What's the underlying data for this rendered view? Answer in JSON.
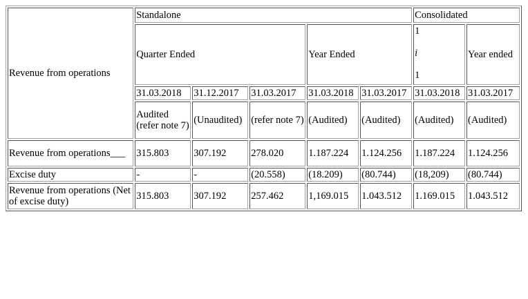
{
  "table": {
    "row_header": "Revenue from operations",
    "groups": {
      "standalone": "Standalone",
      "consolidated": "Consolidated"
    },
    "periods": {
      "quarter_ended": "Quarter Ended",
      "year_ended": "Year Ended",
      "consolidated_note": [
        "1",
        "i",
        "1"
      ],
      "consolidated_year_ended": "Year ended"
    },
    "dates": [
      "31.03.2018",
      "31.12.2017",
      "31.03.2017",
      "31.03.2018",
      "31.03.2017",
      "31.03.2018",
      "31.03.2017"
    ],
    "audit_status": [
      "Audited (refer note 7)",
      "(Unaudited)",
      "(refer note 7)",
      "(Audited)",
      "(Audited)",
      "(Audited)",
      "(Audited)"
    ],
    "rows": [
      {
        "label": "Revenue from operations___",
        "values": [
          "315.803",
          "307.192",
          "278.020",
          "1.187.224",
          "1.124.256",
          "1.187.224",
          "1.124.256"
        ]
      },
      {
        "label": "Excise duty",
        "values": [
          "-",
          "-",
          "(20.558)",
          "(18.209)",
          "(80.744)",
          "(18,209)",
          "(80.744)"
        ]
      },
      {
        "label": "Revenue from operations (Net of excise duty)",
        "values": [
          "315.803",
          "307.192",
          "257.462",
          "1,169.015",
          "1.043.512",
          "1.169.015",
          "1.043.512"
        ]
      }
    ]
  }
}
